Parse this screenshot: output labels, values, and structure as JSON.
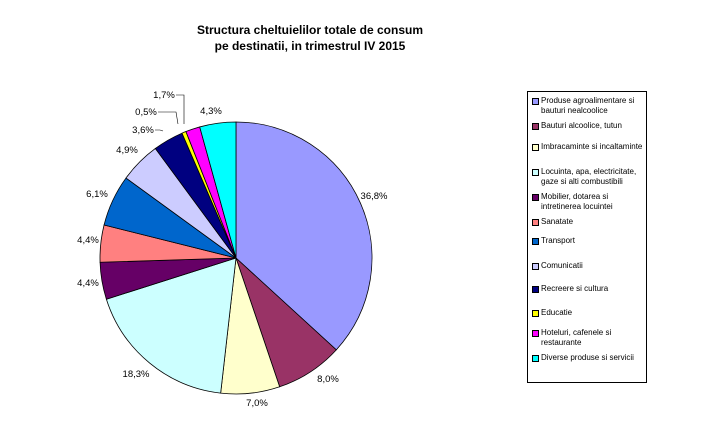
{
  "chart_data": {
    "type": "pie",
    "title": "Structura cheltuielilor totale de consum",
    "subtitle": "pe destinatii, in trimestrul IV 2015",
    "legend_position": "right",
    "categories": [
      "Produse agroalimentare si bauturi nealcoolice",
      "Bauturi alcoolice, tutun",
      "Imbracaminte si incaltaminte",
      "Locuinta, apa, electricitate, gaze si alti combustibili",
      "Mobilier, dotarea si intretinerea locuintei",
      "Sanatate",
      "Transport",
      "Comunicatii",
      "Recreere si cultura",
      "Educatie",
      "Hoteluri, cafenele si restaurante",
      "Diverse produse si servicii"
    ],
    "values": [
      36.8,
      8.0,
      7.0,
      18.3,
      4.4,
      4.4,
      6.1,
      4.9,
      3.6,
      0.5,
      1.7,
      4.3
    ],
    "labels": [
      "36,8%",
      "8,0%",
      "7,0%",
      "18,3%",
      "4,4%",
      "4,4%",
      "6,1%",
      "4,9%",
      "3,6%",
      "0,5%",
      "1,7%",
      "4,3%"
    ],
    "colors": [
      "#9999ff",
      "#993366",
      "#ffffcc",
      "#ccffff",
      "#660066",
      "#ff8080",
      "#0066cc",
      "#ccccff",
      "#000080",
      "#ffff00",
      "#ff00ff",
      "#00ffff"
    ]
  }
}
